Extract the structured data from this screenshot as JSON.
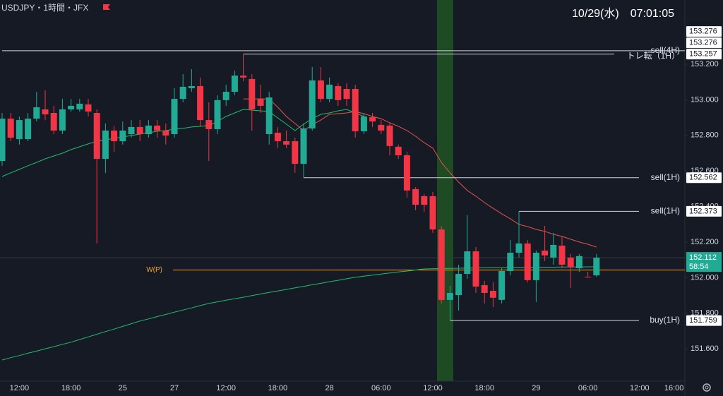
{
  "header": {
    "symbol": "USDJPY・1時間・JFX",
    "datetime": "10/29(水)　07:01:05"
  },
  "chart_data": {
    "type": "candlestick",
    "categories": [
      null,
      null,
      "12:00",
      null,
      null,
      null,
      null,
      null,
      "18:00",
      null,
      null,
      null,
      null,
      null,
      "25",
      null,
      null,
      null,
      null,
      null,
      "27",
      null,
      null,
      null,
      null,
      null,
      "12:00",
      null,
      null,
      null,
      null,
      null,
      "18:00",
      null,
      null,
      null,
      null,
      null,
      "28",
      null,
      null,
      null,
      null,
      null,
      "06:00",
      null,
      null,
      null,
      null,
      null,
      "12:00",
      null,
      null,
      null,
      null,
      null,
      "18:00",
      null,
      null,
      null,
      null,
      null,
      "29",
      null,
      null,
      null,
      null,
      null,
      "06:00",
      null,
      null,
      null,
      null,
      null,
      "12:00",
      null,
      null,
      null,
      "16:00"
    ],
    "open": [
      152.656,
      152.894,
      152.779,
      152.779,
      152.894,
      152.946,
      152.926,
      152.827,
      152.946,
      152.946,
      152.974,
      152.926,
      152.668,
      152.827,
      152.767,
      152.807,
      152.847,
      152.807,
      152.855,
      152.827,
      152.807,
      153.005,
      153.065,
      153.077,
      152.886,
      152.835,
      152.998,
      153.045,
      153.136,
      153.117,
      153.005,
      152.807,
      152.815,
      152.767,
      152.767,
      152.64,
      152.839,
      153.109,
      153.005,
      153.077,
      153.061,
      153.061,
      152.823,
      152.902,
      152.859,
      152.855,
      152.736,
      152.688,
      152.498,
      152.458,
      152.458,
      152.271,
      151.875,
      151.902,
      152.021,
      152.148,
      151.958,
      151.926,
      151.875,
      152.037,
      152.14,
      152.192,
      151.986,
      152.152,
      152.113,
      152.18,
      152.113,
      152.053,
      152.005,
      152.013,
      null,
      null,
      null,
      null,
      null,
      null,
      null,
      null,
      null
    ],
    "high": [
      152.926,
      152.926,
      152.906,
      152.926,
      153.045,
      153.053,
      152.966,
      153.005,
      153.005,
      153.005,
      153.005,
      152.946,
      152.867,
      152.855,
      152.878,
      152.886,
      152.886,
      152.886,
      152.886,
      152.867,
      153.065,
      153.144,
      153.172,
      153.125,
      152.986,
      153.025,
      153.085,
      153.164,
      153.257,
      153.144,
      153.085,
      153.045,
      152.847,
      152.827,
      152.787,
      152.867,
      153.184,
      153.184,
      153.125,
      153.093,
      153.093,
      153.085,
      152.926,
      152.926,
      152.886,
      152.867,
      152.748,
      152.708,
      152.509,
      152.47,
      152.482,
      152.291,
      151.954,
      152.073,
      152.351,
      152.172,
      151.982,
      151.974,
      152.053,
      152.212,
      152.373,
      152.212,
      152.152,
      152.291,
      152.252,
      152.232,
      152.133,
      152.133,
      152.033,
      152.133,
      null,
      null,
      null,
      null,
      null,
      null,
      null,
      null,
      null
    ],
    "low": [
      152.629,
      152.767,
      152.748,
      152.767,
      152.878,
      152.886,
      152.807,
      152.807,
      152.934,
      152.934,
      152.906,
      152.192,
      152.589,
      152.708,
      152.748,
      152.787,
      152.767,
      152.787,
      152.787,
      152.748,
      152.787,
      152.986,
      153.045,
      152.847,
      152.656,
      152.807,
      152.966,
      153.025,
      153.105,
      152.827,
      152.926,
      152.748,
      152.728,
      152.728,
      152.589,
      152.562,
      152.827,
      152.986,
      152.986,
      152.966,
      152.966,
      152.787,
      152.807,
      152.847,
      152.807,
      152.688,
      152.668,
      152.45,
      152.379,
      152.371,
      152.252,
      151.855,
      151.759,
      151.815,
      151.994,
      151.914,
      151.855,
      151.835,
      151.855,
      152.013,
      152.113,
      151.974,
      151.863,
      152.093,
      152.073,
      152.053,
      151.942,
      152.033,
      152.002,
      152.005,
      null,
      null,
      null,
      null,
      null,
      null,
      null,
      null,
      null
    ],
    "close": [
      152.894,
      152.787,
      152.886,
      152.894,
      152.958,
      152.918,
      152.827,
      152.946,
      152.966,
      152.978,
      152.934,
      152.668,
      152.827,
      152.767,
      152.827,
      152.847,
      152.807,
      152.855,
      152.827,
      152.799,
      153.005,
      153.073,
      153.077,
      152.886,
      152.835,
      152.998,
      153.045,
      153.136,
      153.125,
      152.946,
      152.966,
      153.013,
      152.767,
      152.748,
      152.64,
      152.839,
      153.109,
      153.005,
      153.085,
      152.998,
      153.005,
      152.823,
      152.906,
      152.878,
      152.827,
      152.74,
      152.688,
      152.49,
      152.41,
      152.41,
      152.271,
      151.875,
      151.914,
      152.021,
      152.148,
      151.95,
      151.914,
      151.887,
      152.037,
      152.14,
      152.192,
      151.986,
      152.14,
      152.125,
      152.184,
      152.073,
      152.061,
      152.121,
      152.002,
      152.112,
      null,
      null,
      null,
      null,
      null,
      null,
      null,
      null,
      null
    ],
    "up_color": "#22ab94",
    "down_color": "#f23645",
    "series": [
      {
        "color": "#1fbf68",
        "values": [
          151.537,
          151.55,
          151.562,
          151.575,
          151.587,
          151.6,
          151.612,
          151.625,
          151.637,
          151.652,
          151.667,
          151.682,
          151.697,
          151.711,
          151.726,
          151.741,
          151.756,
          151.768,
          151.781,
          151.793,
          151.806,
          151.818,
          151.83,
          151.843,
          151.855,
          151.864,
          151.873,
          151.881,
          151.89,
          151.899,
          151.908,
          151.917,
          151.925,
          151.934,
          151.943,
          151.951,
          151.96,
          151.968,
          151.977,
          151.985,
          151.994,
          152.002,
          152.008,
          152.014,
          152.02,
          152.026,
          152.032,
          152.037,
          152.043,
          152.049,
          152.05,
          152.051,
          152.052,
          152.053,
          152.054,
          152.055,
          152.056,
          152.057,
          152.057,
          152.058,
          152.058,
          152.058,
          152.059,
          152.059,
          152.059,
          152.06,
          152.06,
          152.06,
          152.061,
          152.061,
          null,
          null,
          null,
          null,
          null,
          null,
          null,
          null,
          null
        ]
      },
      {
        "color": "#1fbf68",
        "values": [
          152.569,
          152.589,
          152.609,
          152.629,
          152.648,
          152.668,
          152.684,
          152.7,
          152.72,
          152.736,
          152.752,
          152.767,
          152.775,
          152.783,
          152.791,
          152.799,
          152.807,
          152.815,
          152.823,
          152.827,
          152.835,
          152.839,
          152.847,
          152.851,
          152.855,
          152.878,
          152.906,
          152.926,
          152.946,
          152.942,
          152.938,
          152.934,
          152.898,
          152.863,
          152.827,
          152.863,
          152.894,
          152.918,
          152.926,
          152.938,
          152.946,
          152.926,
          152.906,
          null,
          null,
          null,
          null,
          null,
          null,
          null,
          null,
          null,
          null,
          null,
          null,
          null,
          null,
          null,
          null,
          null,
          null,
          null,
          null,
          null,
          null,
          null,
          null,
          null,
          null,
          null,
          null,
          null,
          null,
          null,
          null,
          null,
          null,
          null,
          null
        ]
      },
      {
        "color": "#e5534b",
        "values": [
          null,
          null,
          null,
          null,
          null,
          null,
          null,
          null,
          null,
          null,
          null,
          null,
          null,
          null,
          null,
          null,
          null,
          null,
          null,
          null,
          null,
          null,
          null,
          null,
          null,
          null,
          null,
          null,
          153.005,
          153.005,
          153.005,
          153.005,
          152.958,
          152.906,
          152.867,
          152.827,
          152.859,
          152.886,
          152.918,
          152.922,
          152.926,
          152.934,
          152.922,
          152.906,
          152.894,
          152.871,
          152.851,
          152.827,
          152.795,
          152.759,
          152.728,
          152.648,
          152.589,
          152.537,
          152.49,
          152.458,
          152.422,
          152.39,
          152.359,
          152.331,
          152.299,
          152.287,
          152.271,
          152.26,
          152.244,
          152.232,
          152.216,
          152.2,
          152.188,
          152.172,
          null,
          null,
          null,
          null,
          null,
          null,
          null,
          null,
          null
        ]
      }
    ],
    "levels": [
      {
        "value": 153.276
      },
      {
        "name": "sell(4H)",
        "value": 153.276
      },
      {
        "name": "トレ転（1H）",
        "value": 153.257
      },
      {
        "name": "sell(1H)",
        "value": 152.562
      },
      {
        "name": "sell(1H)",
        "value": 152.373
      },
      {
        "name": "buy(1H)",
        "value": 151.759
      }
    ],
    "pivot": {
      "name": "W(P)",
      "value": 152.043,
      "color": "#f5a623"
    },
    "last_price": 152.112,
    "countdown": "58:54",
    "ylim": [
      151.418,
      153.561
    ],
    "yticks": [
      {
        "value": 151.6,
        "label": "151.600"
      },
      {
        "value": 151.8,
        "label": "151.800"
      },
      {
        "value": 152.0,
        "label": "152.000"
      },
      {
        "value": 152.2,
        "label": "152.200"
      },
      {
        "value": 152.4,
        "label": "152.400"
      },
      {
        "value": 152.6,
        "label": "152.600"
      },
      {
        "value": 152.8,
        "label": "152.800"
      },
      {
        "value": 153.0,
        "label": "153.000"
      },
      {
        "value": 153.2,
        "label": "153.200"
      }
    ],
    "grid": false
  }
}
